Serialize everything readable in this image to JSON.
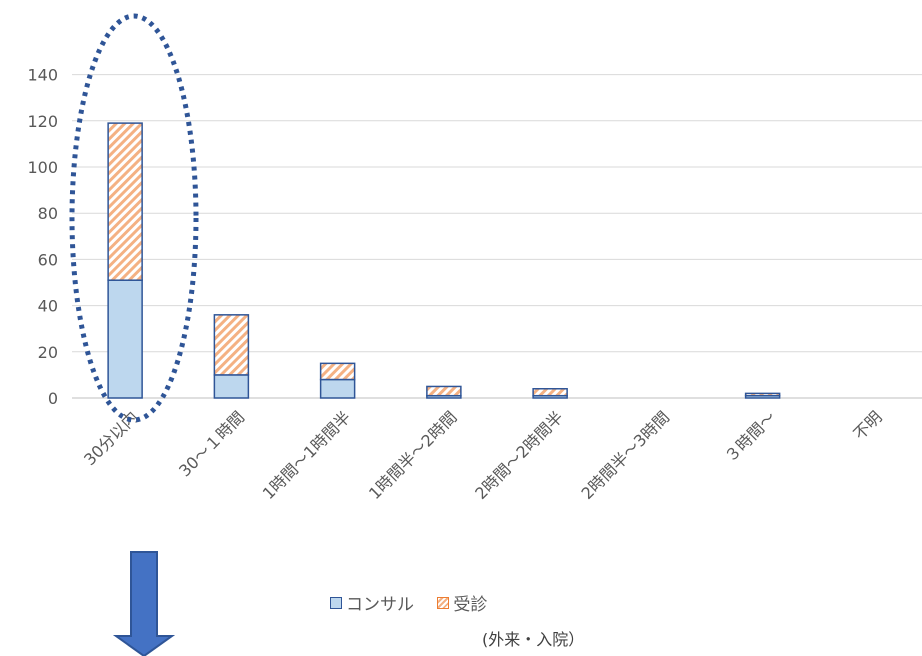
{
  "chart_data": {
    "type": "bar",
    "stacked": true,
    "categories": [
      "30分以内",
      "30～１時間",
      "1時間～1時間半",
      "1時間半～2時間",
      "2時間～2時間半",
      "2時間半～3時間",
      "３時間～",
      "不明"
    ],
    "series": [
      {
        "name": "コンサル",
        "values": [
          51,
          10,
          8,
          1,
          1,
          0,
          1,
          0
        ],
        "color": "#bdd7ee",
        "pattern": "solid"
      },
      {
        "name": "受診",
        "values": [
          68,
          26,
          7,
          4,
          3,
          0,
          1,
          0
        ],
        "color": "#f4b183",
        "pattern": "hatch"
      }
    ],
    "yticks": [
      0,
      20,
      40,
      60,
      80,
      100,
      120,
      140
    ],
    "ylim": [
      0,
      155
    ],
    "grid": true,
    "legend_position": "bottom",
    "xlabel": "",
    "ylabel": "",
    "title": ""
  },
  "legend": {
    "consult_label": "コンサル",
    "exam_label": "受診",
    "exam_note": "(外来・入院）"
  },
  "colors": {
    "outline": "#2f5597",
    "ellipse": "#2f5597",
    "arrow": "#4472c4",
    "grid": "#d9d9d9"
  }
}
